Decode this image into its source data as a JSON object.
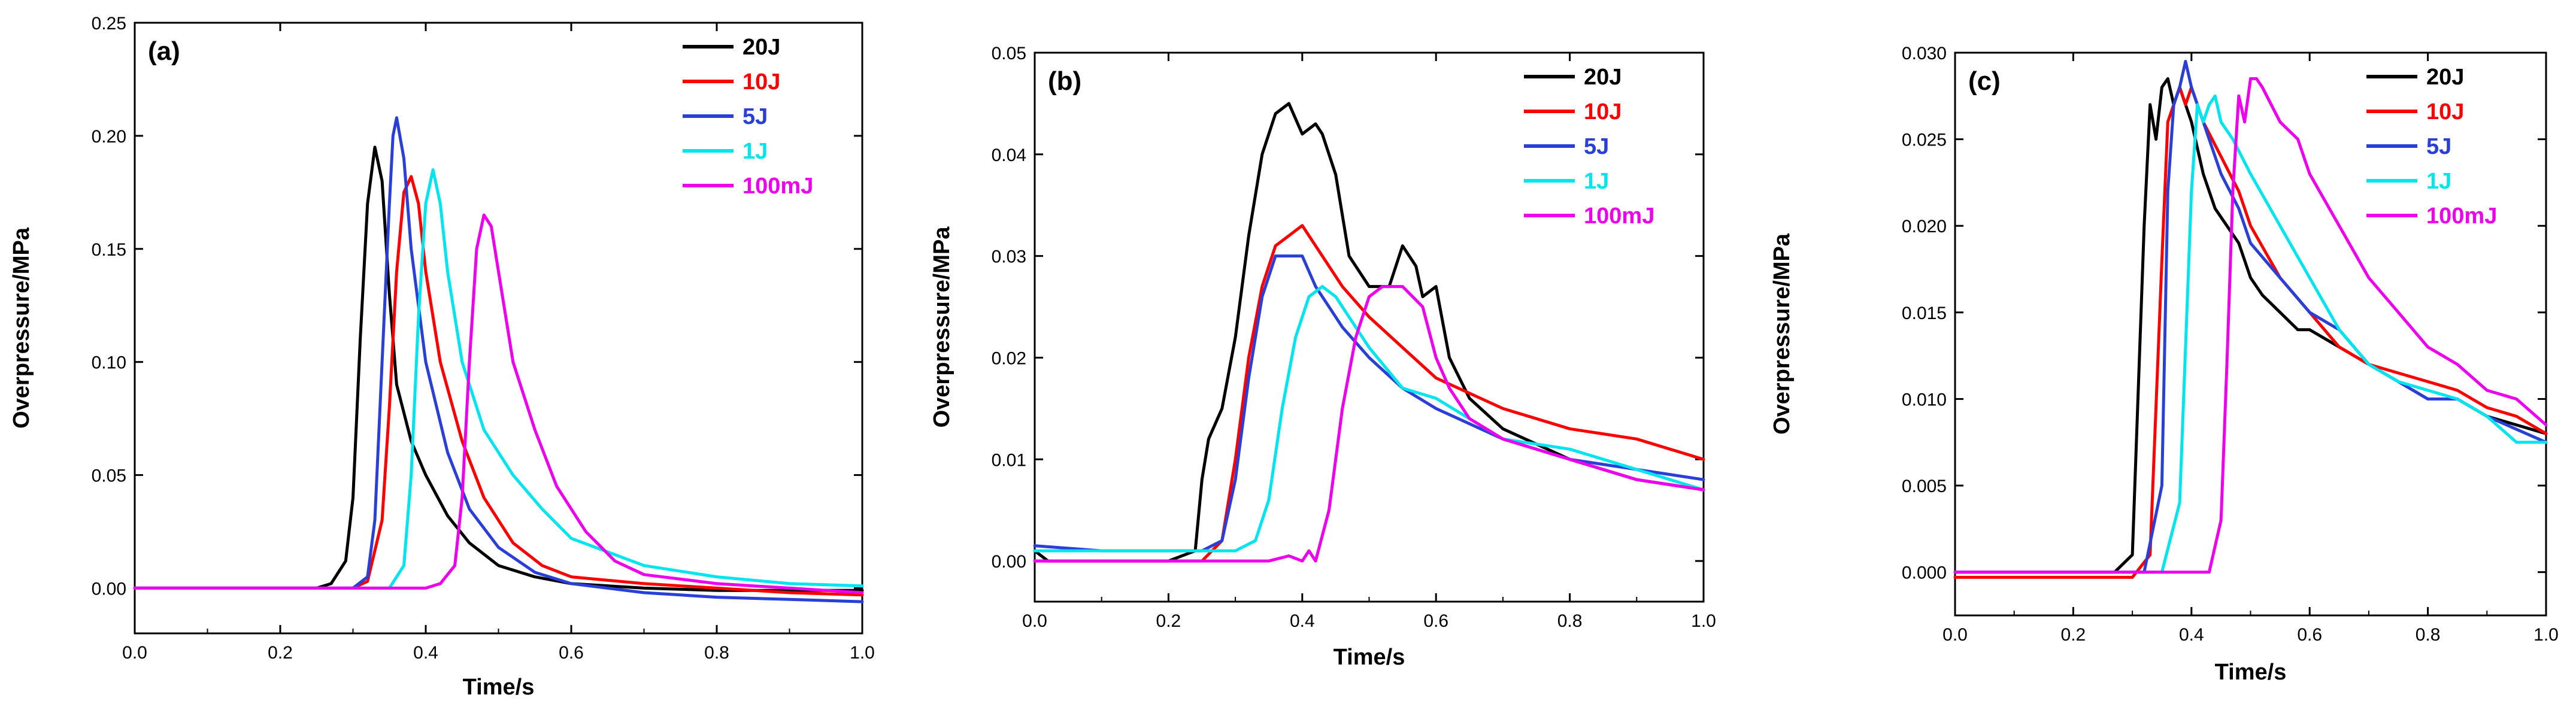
{
  "chart_data": [
    {
      "type": "line",
      "panel_label": "(a)",
      "xlabel": "Time/s",
      "ylabel": "Overpressure/MPa",
      "xlim": [
        0.0,
        1.0
      ],
      "ylim": [
        -0.02,
        0.25
      ],
      "xticks": [
        "0.0",
        "0.2",
        "0.4",
        "0.6",
        "0.8",
        "1.0"
      ],
      "xtick_values": [
        0.0,
        0.2,
        0.4,
        0.6,
        0.8,
        1.0
      ],
      "yticks": [
        "0.00",
        "0.05",
        "0.10",
        "0.15",
        "0.20",
        "0.25"
      ],
      "ytick_values": [
        0.0,
        0.05,
        0.1,
        0.15,
        0.2,
        0.25
      ],
      "grid": false,
      "legend_position": "top-right",
      "series": [
        {
          "name": "20J",
          "color": "#000000",
          "x": [
            0.0,
            0.25,
            0.27,
            0.29,
            0.3,
            0.31,
            0.32,
            0.33,
            0.34,
            0.35,
            0.36,
            0.38,
            0.4,
            0.43,
            0.46,
            0.5,
            0.55,
            0.6,
            0.7,
            0.8,
            0.9,
            1.0
          ],
          "y": [
            0.0,
            0.0,
            0.002,
            0.012,
            0.04,
            0.11,
            0.17,
            0.195,
            0.18,
            0.13,
            0.09,
            0.065,
            0.05,
            0.032,
            0.02,
            0.01,
            0.005,
            0.002,
            0.0,
            -0.001,
            -0.001,
            -0.001
          ]
        },
        {
          "name": "10J",
          "color": "#ff0000",
          "x": [
            0.0,
            0.3,
            0.32,
            0.34,
            0.35,
            0.36,
            0.37,
            0.38,
            0.39,
            0.4,
            0.42,
            0.45,
            0.48,
            0.52,
            0.56,
            0.6,
            0.7,
            0.8,
            0.9,
            1.0
          ],
          "y": [
            0.0,
            0.0,
            0.003,
            0.03,
            0.08,
            0.14,
            0.175,
            0.182,
            0.17,
            0.14,
            0.1,
            0.065,
            0.04,
            0.02,
            0.01,
            0.005,
            0.002,
            0.0,
            -0.002,
            -0.003
          ]
        },
        {
          "name": "5J",
          "color": "#2a3fd8",
          "x": [
            0.0,
            0.3,
            0.32,
            0.33,
            0.34,
            0.35,
            0.355,
            0.36,
            0.37,
            0.38,
            0.4,
            0.43,
            0.46,
            0.5,
            0.55,
            0.6,
            0.7,
            0.8,
            0.9,
            1.0
          ],
          "y": [
            0.0,
            0.0,
            0.005,
            0.03,
            0.1,
            0.17,
            0.2,
            0.208,
            0.19,
            0.15,
            0.1,
            0.06,
            0.035,
            0.018,
            0.007,
            0.002,
            -0.002,
            -0.004,
            -0.005,
            -0.006
          ]
        },
        {
          "name": "1J",
          "color": "#00e5ee",
          "x": [
            0.0,
            0.35,
            0.37,
            0.38,
            0.39,
            0.4,
            0.41,
            0.42,
            0.43,
            0.45,
            0.48,
            0.52,
            0.56,
            0.6,
            0.7,
            0.8,
            0.9,
            1.0
          ],
          "y": [
            0.0,
            0.0,
            0.01,
            0.05,
            0.12,
            0.17,
            0.185,
            0.17,
            0.14,
            0.1,
            0.07,
            0.05,
            0.035,
            0.022,
            0.01,
            0.005,
            0.002,
            0.001
          ]
        },
        {
          "name": "100mJ",
          "color": "#ee00ee",
          "x": [
            0.0,
            0.4,
            0.42,
            0.44,
            0.45,
            0.46,
            0.47,
            0.48,
            0.49,
            0.5,
            0.52,
            0.55,
            0.58,
            0.62,
            0.66,
            0.7,
            0.8,
            0.9,
            1.0
          ],
          "y": [
            0.0,
            0.0,
            0.002,
            0.01,
            0.04,
            0.1,
            0.15,
            0.165,
            0.16,
            0.14,
            0.1,
            0.07,
            0.045,
            0.025,
            0.012,
            0.006,
            0.002,
            0.0,
            -0.002
          ]
        }
      ]
    },
    {
      "type": "line",
      "panel_label": "(b)",
      "xlabel": "Time/s",
      "ylabel": "Overpressure/MPa",
      "xlim": [
        0.0,
        1.0
      ],
      "ylim": [
        -0.004,
        0.05
      ],
      "xticks": [
        "0.0",
        "0.2",
        "0.4",
        "0.6",
        "0.8",
        "1.0"
      ],
      "xtick_values": [
        0.0,
        0.2,
        0.4,
        0.6,
        0.8,
        1.0
      ],
      "yticks": [
        "0.00",
        "0.01",
        "0.02",
        "0.03",
        "0.04",
        "0.05"
      ],
      "ytick_values": [
        0.0,
        0.01,
        0.02,
        0.03,
        0.04,
        0.05
      ],
      "grid": false,
      "legend_position": "top-right",
      "series": [
        {
          "name": "20J",
          "color": "#000000",
          "x": [
            0.0,
            0.02,
            0.05,
            0.1,
            0.2,
            0.24,
            0.25,
            0.26,
            0.28,
            0.3,
            0.32,
            0.34,
            0.36,
            0.38,
            0.4,
            0.42,
            0.43,
            0.45,
            0.47,
            0.5,
            0.53,
            0.55,
            0.57,
            0.58,
            0.6,
            0.62,
            0.65,
            0.7,
            0.8,
            0.9,
            1.0
          ],
          "y": [
            0.001,
            0.0,
            0.0,
            0.0,
            0.0,
            0.001,
            0.008,
            0.012,
            0.015,
            0.022,
            0.032,
            0.04,
            0.044,
            0.045,
            0.042,
            0.043,
            0.042,
            0.038,
            0.03,
            0.027,
            0.027,
            0.031,
            0.029,
            0.026,
            0.027,
            0.02,
            0.016,
            0.013,
            0.01,
            0.008,
            0.007
          ]
        },
        {
          "name": "10J",
          "color": "#ff0000",
          "x": [
            0.0,
            0.25,
            0.28,
            0.3,
            0.32,
            0.34,
            0.36,
            0.38,
            0.4,
            0.42,
            0.44,
            0.46,
            0.5,
            0.55,
            0.6,
            0.7,
            0.8,
            0.9,
            1.0
          ],
          "y": [
            0.0,
            0.0,
            0.002,
            0.01,
            0.02,
            0.027,
            0.031,
            0.032,
            0.033,
            0.031,
            0.029,
            0.027,
            0.024,
            0.021,
            0.018,
            0.015,
            0.013,
            0.012,
            0.01
          ]
        },
        {
          "name": "5J",
          "color": "#2a3fd8",
          "x": [
            0.0,
            0.1,
            0.2,
            0.25,
            0.28,
            0.3,
            0.32,
            0.34,
            0.36,
            0.38,
            0.4,
            0.42,
            0.44,
            0.46,
            0.5,
            0.55,
            0.6,
            0.7,
            0.8,
            0.9,
            1.0
          ],
          "y": [
            0.0015,
            0.001,
            0.001,
            0.001,
            0.002,
            0.008,
            0.018,
            0.026,
            0.03,
            0.03,
            0.03,
            0.027,
            0.025,
            0.023,
            0.02,
            0.017,
            0.015,
            0.012,
            0.01,
            0.009,
            0.008
          ]
        },
        {
          "name": "1J",
          "color": "#00e5ee",
          "x": [
            0.0,
            0.3,
            0.33,
            0.35,
            0.37,
            0.39,
            0.41,
            0.43,
            0.45,
            0.47,
            0.5,
            0.55,
            0.6,
            0.7,
            0.8,
            0.9,
            1.0
          ],
          "y": [
            0.001,
            0.001,
            0.002,
            0.006,
            0.015,
            0.022,
            0.026,
            0.027,
            0.026,
            0.024,
            0.021,
            0.017,
            0.016,
            0.012,
            0.011,
            0.009,
            0.007
          ]
        },
        {
          "name": "100mJ",
          "color": "#ee00ee",
          "x": [
            0.0,
            0.3,
            0.35,
            0.38,
            0.4,
            0.41,
            0.42,
            0.44,
            0.46,
            0.48,
            0.5,
            0.52,
            0.55,
            0.58,
            0.6,
            0.62,
            0.65,
            0.7,
            0.8,
            0.9,
            1.0
          ],
          "y": [
            0.0,
            0.0,
            0.0,
            0.0005,
            0.0,
            0.001,
            0.0,
            0.005,
            0.015,
            0.022,
            0.026,
            0.027,
            0.027,
            0.025,
            0.02,
            0.017,
            0.014,
            0.012,
            0.01,
            0.008,
            0.007
          ]
        }
      ]
    },
    {
      "type": "line",
      "panel_label": "(c)",
      "xlabel": "Time/s",
      "ylabel": "Overpressure/MPa",
      "xlim": [
        0.0,
        1.0
      ],
      "ylim": [
        -0.0025,
        0.03
      ],
      "xticks": [
        "0.0",
        "0.2",
        "0.4",
        "0.6",
        "0.8",
        "1.0"
      ],
      "xtick_values": [
        0.0,
        0.2,
        0.4,
        0.6,
        0.8,
        1.0
      ],
      "yticks": [
        "0.000",
        "0.005",
        "0.010",
        "0.015",
        "0.020",
        "0.025",
        "0.030"
      ],
      "ytick_values": [
        0.0,
        0.005,
        0.01,
        0.015,
        0.02,
        0.025,
        0.03
      ],
      "grid": false,
      "legend_position": "top-right",
      "series": [
        {
          "name": "20J",
          "color": "#000000",
          "x": [
            0.0,
            0.27,
            0.3,
            0.32,
            0.33,
            0.34,
            0.35,
            0.36,
            0.37,
            0.38,
            0.4,
            0.42,
            0.44,
            0.46,
            0.48,
            0.5,
            0.52,
            0.55,
            0.58,
            0.6,
            0.65,
            0.7,
            0.75,
            0.8,
            0.85,
            0.9,
            1.0
          ],
          "y": [
            0.0,
            0.0,
            0.001,
            0.02,
            0.027,
            0.025,
            0.028,
            0.0285,
            0.027,
            0.028,
            0.026,
            0.023,
            0.021,
            0.02,
            0.019,
            0.017,
            0.016,
            0.015,
            0.014,
            0.014,
            0.013,
            0.012,
            0.011,
            0.01,
            0.01,
            0.009,
            0.008
          ]
        },
        {
          "name": "10J",
          "color": "#ff0000",
          "x": [
            0.0,
            0.3,
            0.33,
            0.35,
            0.36,
            0.37,
            0.38,
            0.39,
            0.4,
            0.42,
            0.45,
            0.48,
            0.5,
            0.55,
            0.6,
            0.65,
            0.7,
            0.75,
            0.8,
            0.85,
            0.9,
            0.95,
            1.0
          ],
          "y": [
            -0.0003,
            -0.0003,
            0.001,
            0.018,
            0.026,
            0.027,
            0.028,
            0.027,
            0.028,
            0.026,
            0.024,
            0.022,
            0.02,
            0.017,
            0.015,
            0.013,
            0.012,
            0.0115,
            0.011,
            0.0105,
            0.0095,
            0.009,
            0.008
          ]
        },
        {
          "name": "5J",
          "color": "#2a3fd8",
          "x": [
            0.0,
            0.32,
            0.35,
            0.36,
            0.37,
            0.38,
            0.39,
            0.4,
            0.41,
            0.43,
            0.45,
            0.48,
            0.5,
            0.55,
            0.6,
            0.65,
            0.7,
            0.75,
            0.8,
            0.85,
            0.9,
            1.0
          ],
          "y": [
            0.0,
            0.0,
            0.005,
            0.022,
            0.027,
            0.028,
            0.0295,
            0.028,
            0.027,
            0.025,
            0.023,
            0.021,
            0.019,
            0.017,
            0.015,
            0.014,
            0.012,
            0.011,
            0.01,
            0.01,
            0.009,
            0.0075
          ]
        },
        {
          "name": "1J",
          "color": "#00e5ee",
          "x": [
            0.0,
            0.35,
            0.38,
            0.4,
            0.41,
            0.42,
            0.43,
            0.44,
            0.45,
            0.47,
            0.5,
            0.55,
            0.6,
            0.65,
            0.7,
            0.75,
            0.8,
            0.85,
            0.9,
            0.95,
            1.0
          ],
          "y": [
            0.0,
            0.0,
            0.004,
            0.022,
            0.027,
            0.026,
            0.027,
            0.0275,
            0.026,
            0.025,
            0.023,
            0.02,
            0.017,
            0.014,
            0.012,
            0.011,
            0.0105,
            0.01,
            0.009,
            0.0075,
            0.0075
          ]
        },
        {
          "name": "100mJ",
          "color": "#ee00ee",
          "x": [
            0.0,
            0.43,
            0.45,
            0.46,
            0.47,
            0.48,
            0.49,
            0.5,
            0.51,
            0.52,
            0.55,
            0.58,
            0.6,
            0.65,
            0.7,
            0.75,
            0.8,
            0.85,
            0.9,
            0.95,
            1.0
          ],
          "y": [
            0.0,
            0.0,
            0.003,
            0.012,
            0.022,
            0.0275,
            0.026,
            0.0285,
            0.0285,
            0.028,
            0.026,
            0.025,
            0.023,
            0.02,
            0.017,
            0.015,
            0.013,
            0.012,
            0.0105,
            0.01,
            0.0085
          ]
        }
      ]
    }
  ]
}
